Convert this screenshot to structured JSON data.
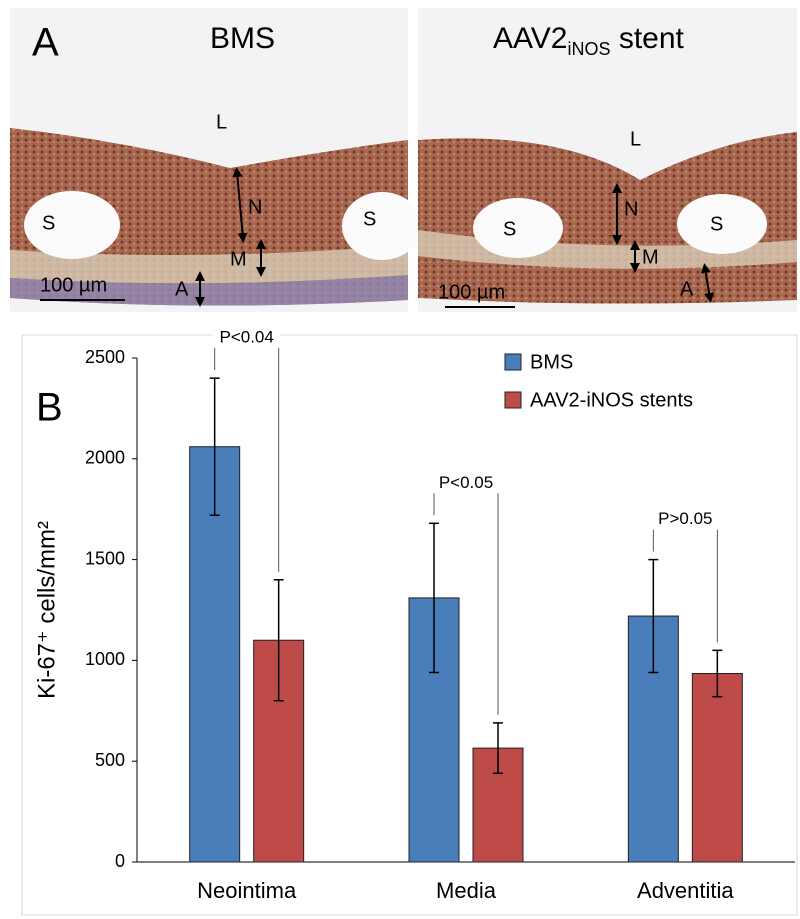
{
  "panel_a": {
    "label": "A",
    "left": {
      "title": "BMS",
      "labels": [
        "L",
        "S",
        "S",
        "N",
        "M",
        "A"
      ],
      "scale": "100 µm"
    },
    "right": {
      "title": {
        "main": "AAV2",
        "sub": "iNOS",
        "rest": " stent"
      },
      "labels": [
        "L",
        "S",
        "S",
        "N",
        "M",
        "A"
      ],
      "scale": "100 µm"
    }
  },
  "chart_data": {
    "type": "bar",
    "panel_label": "B",
    "y_label": "Ki-67⁺ cells/mm²",
    "categories": [
      "Neointima",
      "Media",
      "Adventitia"
    ],
    "series": [
      {
        "name": "BMS",
        "color": "#4a7ebb",
        "values": [
          2060,
          1310,
          1220
        ],
        "errors": [
          340,
          370,
          280
        ]
      },
      {
        "name": "AAV2-iNOS stents",
        "color": "#be4b48",
        "values": [
          1100,
          565,
          935
        ],
        "errors": [
          300,
          125,
          115
        ]
      }
    ],
    "ylim": [
      0,
      2500
    ],
    "yticks": [
      0,
      500,
      1000,
      1500,
      2000,
      2500
    ],
    "annotations": [
      {
        "text": "P<0.04",
        "category": "Neointima"
      },
      {
        "text": "P<0.05",
        "category": "Media"
      },
      {
        "text": "P>0.05",
        "category": "Adventitia"
      }
    ]
  }
}
